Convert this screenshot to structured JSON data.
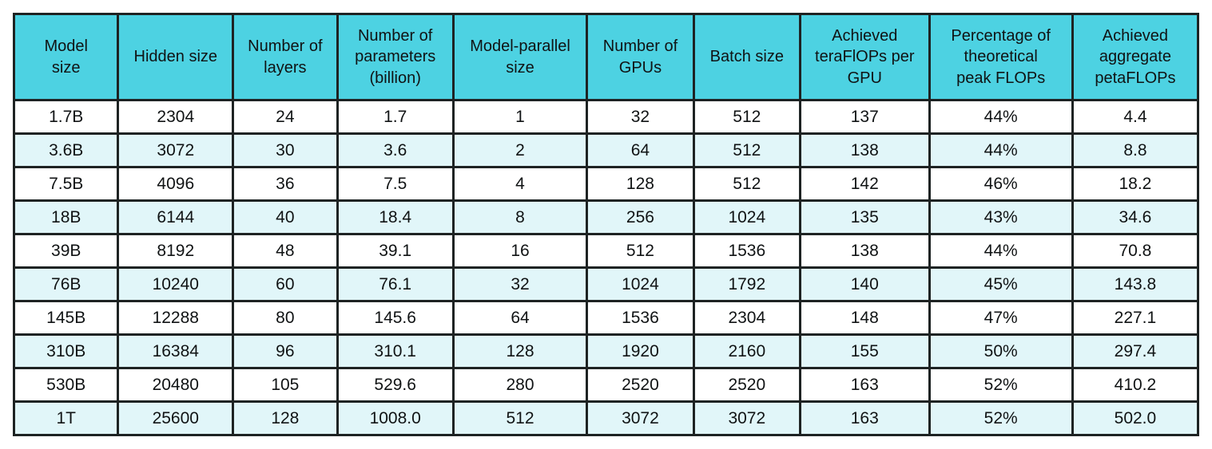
{
  "colors": {
    "header_bg": "#4dd2e2",
    "row_bg": "#ffffff",
    "row_alt_bg": "#e1f6f9",
    "border": "#1e2323",
    "text": "#101314"
  },
  "chart_data": {
    "type": "table",
    "columns": [
      "Model\nsize",
      "Hidden size",
      "Number of\nlayers",
      "Number of\nparameters\n(billion)",
      "Model-parallel\nsize",
      "Number of\nGPUs",
      "Batch size",
      "Achieved\nteraFlOPs per\nGPU",
      "Percentage of\ntheoretical\npeak FLOPs",
      "Achieved\naggregate\npetaFLOPs"
    ],
    "rows": [
      [
        "1.7B",
        "2304",
        "24",
        "1.7",
        "1",
        "32",
        "512",
        "137",
        "44%",
        "4.4"
      ],
      [
        "3.6B",
        "3072",
        "30",
        "3.6",
        "2",
        "64",
        "512",
        "138",
        "44%",
        "8.8"
      ],
      [
        "7.5B",
        "4096",
        "36",
        "7.5",
        "4",
        "128",
        "512",
        "142",
        "46%",
        "18.2"
      ],
      [
        "18B",
        "6144",
        "40",
        "18.4",
        "8",
        "256",
        "1024",
        "135",
        "43%",
        "34.6"
      ],
      [
        "39B",
        "8192",
        "48",
        "39.1",
        "16",
        "512",
        "1536",
        "138",
        "44%",
        "70.8"
      ],
      [
        "76B",
        "10240",
        "60",
        "76.1",
        "32",
        "1024",
        "1792",
        "140",
        "45%",
        "143.8"
      ],
      [
        "145B",
        "12288",
        "80",
        "145.6",
        "64",
        "1536",
        "2304",
        "148",
        "47%",
        "227.1"
      ],
      [
        "310B",
        "16384",
        "96",
        "310.1",
        "128",
        "1920",
        "2160",
        "155",
        "50%",
        "297.4"
      ],
      [
        "530B",
        "20480",
        "105",
        "529.6",
        "280",
        "2520",
        "2520",
        "163",
        "52%",
        "410.2"
      ],
      [
        "1T",
        "25600",
        "128",
        "1008.0",
        "512",
        "3072",
        "3072",
        "163",
        "52%",
        "502.0"
      ]
    ]
  }
}
